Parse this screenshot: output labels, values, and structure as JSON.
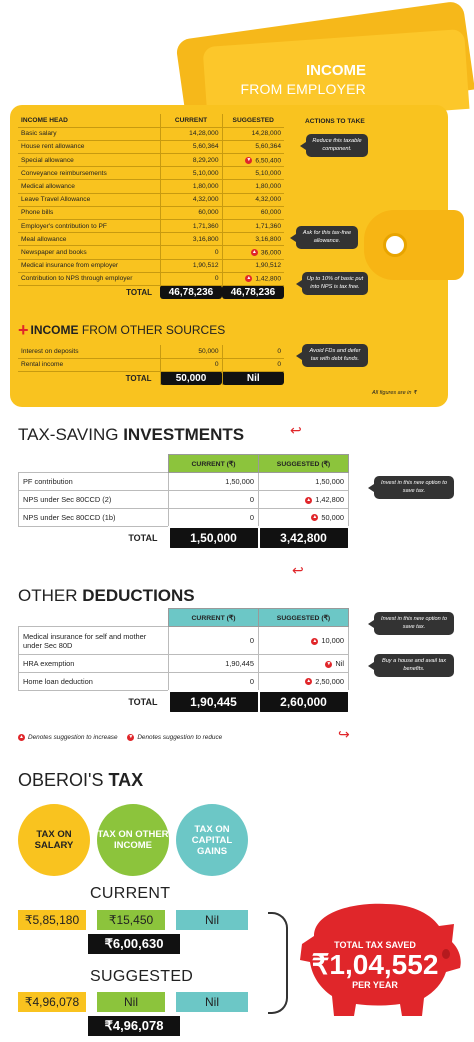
{
  "income_employer": {
    "title_line1": "INCOME",
    "title_line2": "FROM EMPLOYER",
    "headers": {
      "head": "INCOME HEAD",
      "current": "CURRENT",
      "suggested": "SUGGESTED",
      "actions": "ACTIONS TO TAKE"
    },
    "rows": [
      {
        "label": "Basic salary",
        "current": "14,28,000",
        "suggested": "14,28,000",
        "mark": ""
      },
      {
        "label": "House rent allowance",
        "current": "5,60,364",
        "suggested": "5,60,364",
        "mark": ""
      },
      {
        "label": "Special allowance",
        "current": "8,29,200",
        "suggested": "6,50,400",
        "mark": "reduce"
      },
      {
        "label": "Conveyance reimbursements",
        "current": "5,10,000",
        "suggested": "5,10,000",
        "mark": ""
      },
      {
        "label": "Medical allowance",
        "current": "1,80,000",
        "suggested": "1,80,000",
        "mark": ""
      },
      {
        "label": "Leave Travel Allowance",
        "current": "4,32,000",
        "suggested": "4,32,000",
        "mark": ""
      },
      {
        "label": "Phone bills",
        "current": "60,000",
        "suggested": "60,000",
        "mark": ""
      },
      {
        "label": "Employer's contribution to PF",
        "current": "1,71,360",
        "suggested": "1,71,360",
        "mark": ""
      },
      {
        "label": "Meal allowance",
        "current": "3,16,800",
        "suggested": "3,16,800",
        "mark": ""
      },
      {
        "label": "Newspaper and books",
        "current": "0",
        "suggested": "36,000",
        "mark": "increase"
      },
      {
        "label": "Medical insurance from employer",
        "current": "1,90,512",
        "suggested": "1,90,512",
        "mark": ""
      },
      {
        "label": "Contribution to NPS through employer",
        "current": "0",
        "suggested": "1,42,800",
        "mark": "increase"
      }
    ],
    "total_label": "TOTAL",
    "total_current": "46,78,236",
    "total_suggested": "46,78,236",
    "actions": [
      "Reduce this taxable component.",
      "Ask for this tax-free allowance.",
      "Up to 10% of basic put into NPS is tax free."
    ]
  },
  "income_other": {
    "title_prefix": "INCOME",
    "title_rest": "FROM OTHER SOURCES",
    "rows": [
      {
        "label": "Interest on deposits",
        "current": "50,000",
        "suggested": "0"
      },
      {
        "label": "Rental income",
        "current": "0",
        "suggested": "0"
      }
    ],
    "total_label": "TOTAL",
    "total_current": "50,000",
    "total_suggested": "Nil",
    "action": "Avoid FDs and defer tax with debt funds.",
    "note": "All figures are in ₹"
  },
  "investments": {
    "title_light": "TAX-SAVING",
    "title_bold": "INVESTMENTS",
    "headers": {
      "current": "CURRENT (₹)",
      "suggested": "SUGGESTED (₹)"
    },
    "rows": [
      {
        "label": "PF contribution",
        "current": "1,50,000",
        "suggested": "1,50,000",
        "mark": ""
      },
      {
        "label": "NPS under Sec 80CCD (2)",
        "current": "0",
        "suggested": "1,42,800",
        "mark": "increase"
      },
      {
        "label": "NPS under Sec 80CCD (1b)",
        "current": "0",
        "suggested": "50,000",
        "mark": "increase"
      }
    ],
    "total_label": "TOTAL",
    "total_current": "1,50,000",
    "total_suggested": "3,42,800",
    "action": "Invest in this new option to save tax."
  },
  "deductions": {
    "title_light": "OTHER",
    "title_bold": "DEDUCTIONS",
    "headers": {
      "current": "CURRENT (₹)",
      "suggested": "SUGGESTED (₹)"
    },
    "rows": [
      {
        "label": "Medical insurance for self and mother under Sec 80D",
        "current": "0",
        "suggested": "10,000",
        "mark": "increase"
      },
      {
        "label": "HRA exemption",
        "current": "1,90,445",
        "suggested": "Nil",
        "mark": "reduce"
      },
      {
        "label": "Home loan deduction",
        "current": "0",
        "suggested": "2,50,000",
        "mark": "increase"
      }
    ],
    "total_label": "TOTAL",
    "total_current": "1,90,445",
    "total_suggested": "2,60,000",
    "actions": [
      "Invest in this new option to save tax.",
      "Buy a house and avail tax benefits."
    ],
    "legend_increase": "Denotes suggestion to increase",
    "legend_reduce": "Denotes suggestion to reduce"
  },
  "oberoi": {
    "title_light": "OBEROI'S",
    "title_bold": "TAX",
    "circles": [
      "TAX ON SALARY",
      "TAX ON OTHER INCOME",
      "TAX ON CAPITAL GAINS"
    ],
    "current_label": "CURRENT",
    "current": {
      "salary": "₹5,85,180",
      "other": "₹15,450",
      "capital": "Nil",
      "total": "₹6,00,630"
    },
    "suggested_label": "SUGGESTED",
    "suggested": {
      "salary": "₹4,96,078",
      "other": "Nil",
      "capital": "Nil",
      "total": "₹4,96,078"
    },
    "saved_label": "TOTAL TAX SAVED",
    "saved_value": "₹1,04,552",
    "saved_period": "PER YEAR"
  },
  "colors": {
    "yellow": "#f9c31f",
    "green": "#8cc43c",
    "teal": "#6cc7c6",
    "red": "#e0262a",
    "black": "#111111"
  }
}
